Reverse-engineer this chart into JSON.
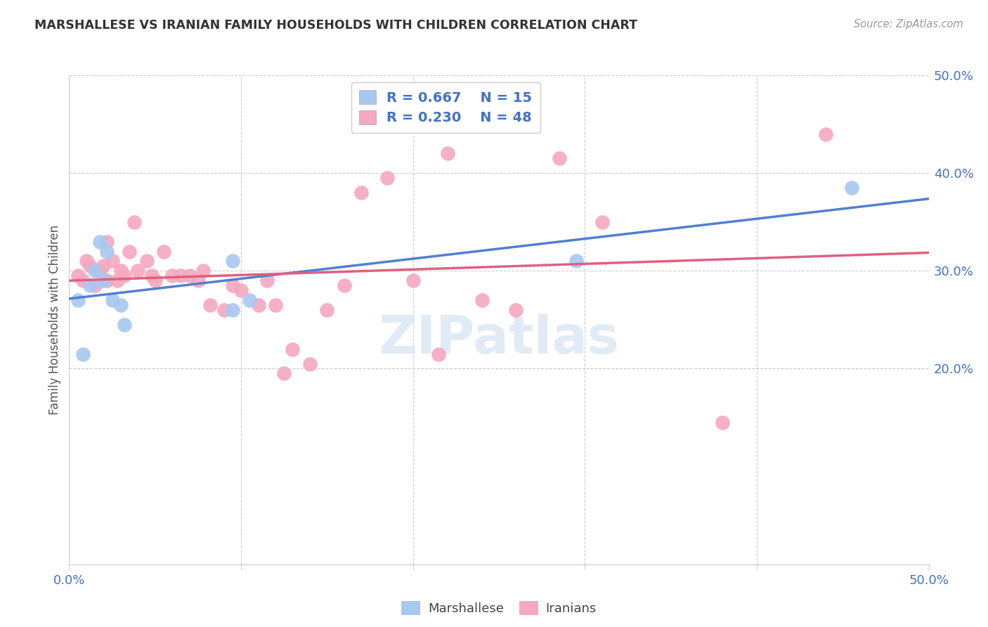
{
  "title": "MARSHALLESE VS IRANIAN FAMILY HOUSEHOLDS WITH CHILDREN CORRELATION CHART",
  "source": "Source: ZipAtlas.com",
  "ylabel": "Family Households with Children",
  "xlim": [
    0.0,
    0.5
  ],
  "ylim": [
    0.0,
    0.5
  ],
  "watermark": "ZIPatlas",
  "blue_R": "0.667",
  "blue_N": "15",
  "pink_R": "0.230",
  "pink_N": "48",
  "blue_color": "#A8C8F0",
  "pink_color": "#F5A8C0",
  "blue_line_color": "#5080D0",
  "pink_line_color": "#E06080",
  "marshallese_x": [
    0.005,
    0.008,
    0.012,
    0.015,
    0.018,
    0.02,
    0.022,
    0.025,
    0.03,
    0.032,
    0.095,
    0.095,
    0.105,
    0.295,
    0.455
  ],
  "marshallese_y": [
    0.27,
    0.215,
    0.285,
    0.3,
    0.33,
    0.29,
    0.32,
    0.27,
    0.265,
    0.245,
    0.26,
    0.31,
    0.27,
    0.31,
    0.385
  ],
  "iranians_x": [
    0.005,
    0.008,
    0.01,
    0.012,
    0.015,
    0.018,
    0.02,
    0.022,
    0.022,
    0.025,
    0.028,
    0.03,
    0.032,
    0.035,
    0.038,
    0.04,
    0.045,
    0.048,
    0.05,
    0.055,
    0.06,
    0.065,
    0.07,
    0.075,
    0.078,
    0.082,
    0.09,
    0.095,
    0.1,
    0.11,
    0.115,
    0.12,
    0.125,
    0.13,
    0.14,
    0.15,
    0.16,
    0.17,
    0.185,
    0.2,
    0.215,
    0.22,
    0.24,
    0.26,
    0.285,
    0.31,
    0.38,
    0.44
  ],
  "iranians_y": [
    0.295,
    0.29,
    0.31,
    0.305,
    0.285,
    0.3,
    0.305,
    0.33,
    0.29,
    0.31,
    0.29,
    0.3,
    0.295,
    0.32,
    0.35,
    0.3,
    0.31,
    0.295,
    0.29,
    0.32,
    0.295,
    0.295,
    0.295,
    0.29,
    0.3,
    0.265,
    0.26,
    0.285,
    0.28,
    0.265,
    0.29,
    0.265,
    0.195,
    0.22,
    0.205,
    0.26,
    0.285,
    0.38,
    0.395,
    0.29,
    0.215,
    0.42,
    0.27,
    0.26,
    0.415,
    0.35,
    0.145,
    0.44
  ],
  "background_color": "#FFFFFF",
  "grid_color": "#CCCCCC",
  "title_color": "#333333",
  "axis_tick_color": "#4472C4"
}
